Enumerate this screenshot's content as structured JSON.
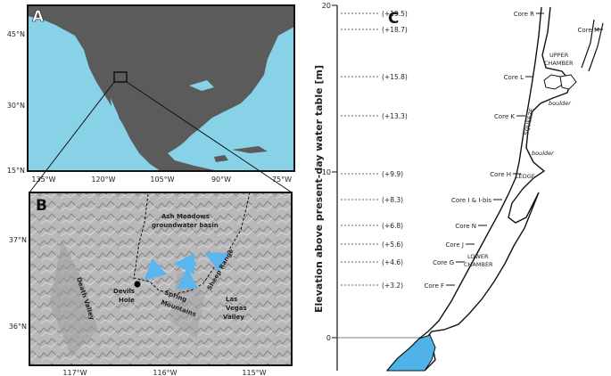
{
  "panel_a": {
    "letter": "A",
    "lat_labels": [
      "45°N",
      "30°N",
      "15°N"
    ],
    "lon_labels": [
      "135°W",
      "120°W",
      "105°W",
      "90°W",
      "75°W"
    ]
  },
  "panel_b": {
    "letter": "B",
    "lat_labels": [
      "37°N",
      "36°N"
    ],
    "lon_labels": [
      "117°W",
      "116°W",
      "115°W"
    ],
    "place_labels": {
      "ash_meadows_1": "Ash Meadows",
      "ash_meadows_2": "groundwater basin",
      "devils_1": "Devils",
      "devils_2": "Hole",
      "death_valley": "Death Valley",
      "sheep_range": "Sheep Range",
      "spring_1": "Spring",
      "spring_2": "Mountains",
      "las_vegas_1": "Las",
      "las_vegas_2": "Vegas",
      "las_vegas_3": "Valley"
    }
  },
  "panel_c": {
    "letter": "C",
    "axis_label": "Elevation above present-day water table [m]",
    "y_ticks": [
      "20",
      "10",
      "0"
    ],
    "elevation_marks": [
      "(+19.5)",
      "(+18.7)",
      "(+15.8)",
      "(+13.3)",
      "(+9.9)",
      "(+8.3)",
      "(+6.8)",
      "(+5.6)",
      "(+4.6)",
      "(+3.2)"
    ],
    "cores": {
      "r": "Core R",
      "m": "Core M",
      "l": "Core L",
      "k": "Core K",
      "h": "Core H",
      "i": "Core I & I-bis",
      "n": "Core N",
      "j": "Core J",
      "g": "Core G",
      "f": "Core F"
    },
    "region_labels": {
      "upper_1": "UPPER",
      "upper_2": "CHAMBER",
      "boulder_1": "boulder",
      "boulder_2": "boulder",
      "squeeze": "SQUEEZE",
      "ledge": "LEDGE",
      "lower_1": "LOWER",
      "lower_2": "CHAMBER"
    }
  },
  "colors": {
    "water": "#88d2e8",
    "land": "#5b5b5b",
    "pool": "#4fb3e8",
    "arrow": "#5ab7ee"
  }
}
